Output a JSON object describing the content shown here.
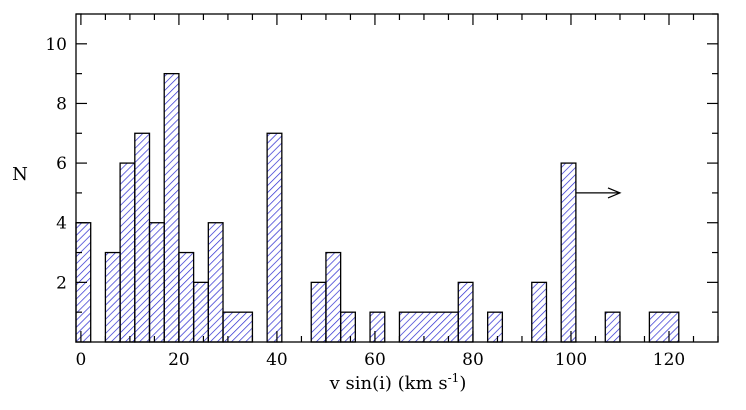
{
  "chart_data": {
    "type": "bar",
    "xlabel": "v sin(i) (km s",
    "xlabel_sup": "-1",
    "xlabel_end": ")",
    "ylabel": "N",
    "xlim": [
      -1,
      130
    ],
    "ylim": [
      0,
      11
    ],
    "bin_width": 3,
    "xticks": [
      0,
      20,
      40,
      60,
      80,
      100,
      120
    ],
    "xtick_labels": [
      "0",
      "20",
      "40",
      "60",
      "80",
      "100",
      "120"
    ],
    "yticks": [
      2,
      4,
      6,
      8,
      10
    ],
    "ytick_labels": [
      "2",
      "4",
      "6",
      "8",
      "10"
    ],
    "hatch_color": "#2a2ad0",
    "bins": [
      {
        "x0": -1,
        "x1": 2,
        "value": 4
      },
      {
        "x0": 5,
        "x1": 8,
        "value": 3
      },
      {
        "x0": 8,
        "x1": 11,
        "value": 6
      },
      {
        "x0": 11,
        "x1": 14,
        "value": 7
      },
      {
        "x0": 14,
        "x1": 17,
        "value": 4
      },
      {
        "x0": 17,
        "x1": 20,
        "value": 9
      },
      {
        "x0": 20,
        "x1": 23,
        "value": 3
      },
      {
        "x0": 23,
        "x1": 26,
        "value": 2
      },
      {
        "x0": 26,
        "x1": 29,
        "value": 4
      },
      {
        "x0": 29,
        "x1": 35,
        "value": 1
      },
      {
        "x0": 38,
        "x1": 41,
        "value": 7
      },
      {
        "x0": 47,
        "x1": 50,
        "value": 2
      },
      {
        "x0": 50,
        "x1": 53,
        "value": 3
      },
      {
        "x0": 53,
        "x1": 56,
        "value": 1
      },
      {
        "x0": 59,
        "x1": 62,
        "value": 1
      },
      {
        "x0": 65,
        "x1": 77,
        "value": 1
      },
      {
        "x0": 77,
        "x1": 80,
        "value": 2
      },
      {
        "x0": 83,
        "x1": 86,
        "value": 1
      },
      {
        "x0": 92,
        "x1": 95,
        "value": 2
      },
      {
        "x0": 98,
        "x1": 101,
        "value": 6
      },
      {
        "x0": 107,
        "x1": 110,
        "value": 1
      },
      {
        "x0": 116,
        "x1": 122,
        "value": 1
      }
    ],
    "annotations": [
      {
        "type": "arrow",
        "from": [
          101,
          5
        ],
        "to": [
          110,
          5
        ]
      }
    ]
  }
}
